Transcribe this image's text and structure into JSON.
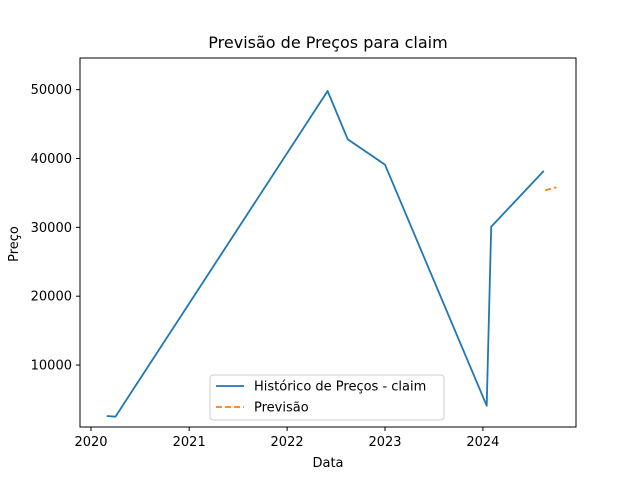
{
  "chart_data": {
    "type": "line",
    "title": "Previsão de Preços para claim",
    "xlabel": "Data",
    "ylabel": "Preço",
    "x_axis_type": "date",
    "xlim": [
      "2019-11-21",
      "2024-12-13"
    ],
    "ylim": [
      1000,
      54600
    ],
    "x_ticks": [
      "2020",
      "2021",
      "2022",
      "2023",
      "2024"
    ],
    "y_ticks": [
      "10000",
      "20000",
      "30000",
      "40000",
      "50000"
    ],
    "grid": false,
    "legend_position": "lower-center",
    "series": [
      {
        "name": "Histórico de Preços - claim",
        "color": "#1f77b4",
        "style": "solid",
        "points": [
          {
            "x": "2020-02-29",
            "y": 2600
          },
          {
            "x": "2020-04-01",
            "y": 2500
          },
          {
            "x": "2022-06-01",
            "y": 49800
          },
          {
            "x": "2022-08-15",
            "y": 42800
          },
          {
            "x": "2023-01-01",
            "y": 39100
          },
          {
            "x": "2024-01-15",
            "y": 4100
          },
          {
            "x": "2024-02-01",
            "y": 30100
          },
          {
            "x": "2024-08-15",
            "y": 38200
          }
        ]
      },
      {
        "name": "Previsão",
        "color": "#ff7f0e",
        "style": "dashed",
        "points": [
          {
            "x": "2024-08-20",
            "y": 35400
          },
          {
            "x": "2024-10-01",
            "y": 35800
          }
        ]
      }
    ]
  }
}
